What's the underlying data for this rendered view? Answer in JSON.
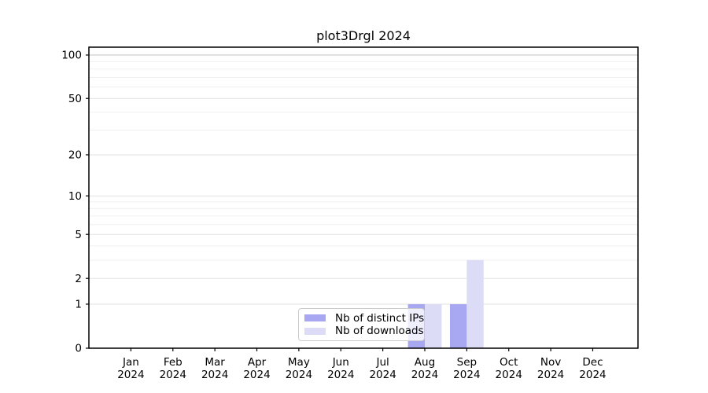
{
  "title": "plot3Drgl 2024",
  "chart_data": {
    "type": "bar",
    "title": "plot3Drgl 2024",
    "categories": [
      [
        "Jan",
        "2024"
      ],
      [
        "Feb",
        "2024"
      ],
      [
        "Mar",
        "2024"
      ],
      [
        "Apr",
        "2024"
      ],
      [
        "May",
        "2024"
      ],
      [
        "Jun",
        "2024"
      ],
      [
        "Jul",
        "2024"
      ],
      [
        "Aug",
        "2024"
      ],
      [
        "Sep",
        "2024"
      ],
      [
        "Oct",
        "2024"
      ],
      [
        "Nov",
        "2024"
      ],
      [
        "Dec",
        "2024"
      ]
    ],
    "series": [
      {
        "name": "Nb of distinct IPs",
        "color": "#a8a8f2",
        "values": [
          0,
          0,
          0,
          0,
          0,
          0,
          0,
          1,
          1,
          0,
          0,
          0
        ]
      },
      {
        "name": "Nb of downloads",
        "color": "#dcdcf7",
        "values": [
          0,
          0,
          0,
          0,
          0,
          0,
          0,
          1,
          3,
          0,
          0,
          0
        ]
      }
    ],
    "xlabel": "",
    "ylabel": "",
    "yscale": "log1p",
    "ylim": [
      0,
      100
    ],
    "y_major_ticks": [
      0,
      1,
      2,
      5,
      10,
      20,
      50,
      100
    ],
    "y_minor_gridlines": [
      3,
      4,
      6,
      7,
      8,
      9,
      30,
      40,
      60,
      70,
      80,
      90
    ],
    "grid": "horizontal",
    "legend_position": "lower-center-inside"
  },
  "colors": {
    "background": "#ffffff",
    "bar_distinct_ips": "#a8a8f2",
    "bar_downloads": "#dcdcf7",
    "major_grid": "#e2e2e2",
    "top_major_grid": "#c3c3c3",
    "minor_grid": "#f0f0f0",
    "axis": "#000000",
    "legend_border": "#cccccc"
  }
}
